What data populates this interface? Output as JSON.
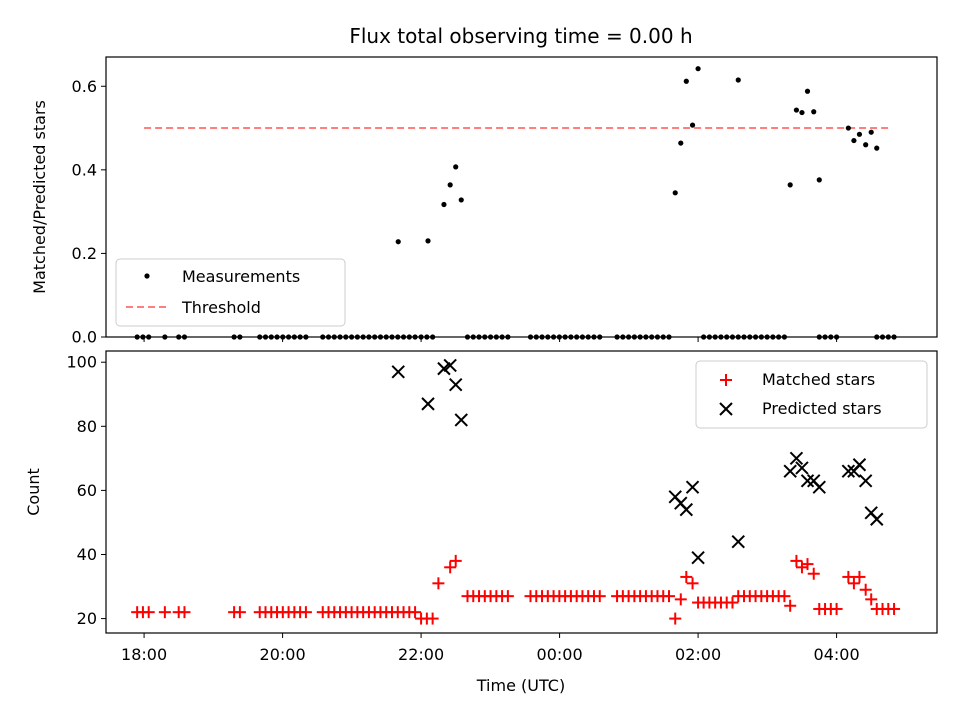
{
  "chart_data": {
    "title": "Flux total observing time = 0.00 h",
    "xlabel": "Time (UTC)",
    "x_ticks": [
      "18:00",
      "20:00",
      "22:00",
      "00:00",
      "02:00",
      "04:00"
    ],
    "x_tick_hours": [
      0,
      2,
      4,
      6,
      8,
      10
    ],
    "x_range_hours": [
      -0.55,
      11.45
    ],
    "top_panel": {
      "type": "scatter",
      "ylabel": "Matched/Predicted stars",
      "ylim": [
        0,
        0.67
      ],
      "y_ticks": [
        0.0,
        0.2,
        0.4,
        0.6
      ],
      "y_tick_labels": [
        "0.0",
        "0.2",
        "0.4",
        "0.6"
      ],
      "threshold": {
        "value": 0.5,
        "x_start": 0,
        "x_end": 10.8,
        "color": "#ff7f7f"
      },
      "legend": {
        "placement": "lower-left",
        "entries": [
          "Measurements",
          "Threshold"
        ]
      },
      "series": [
        {
          "name": "Measurements",
          "color": "#000000",
          "points": [
            [
              3.67,
              0.228
            ],
            [
              4.1,
              0.23
            ],
            [
              4.33,
              0.317
            ],
            [
              4.42,
              0.364
            ],
            [
              4.5,
              0.407
            ],
            [
              4.58,
              0.328
            ],
            [
              7.67,
              0.345
            ],
            [
              7.75,
              0.464
            ],
            [
              7.83,
              0.612
            ],
            [
              7.92,
              0.507
            ],
            [
              8.0,
              0.642
            ],
            [
              8.58,
              0.615
            ],
            [
              9.33,
              0.364
            ],
            [
              9.42,
              0.543
            ],
            [
              9.5,
              0.537
            ],
            [
              9.58,
              0.588
            ],
            [
              9.67,
              0.539
            ],
            [
              9.75,
              0.376
            ],
            [
              10.17,
              0.5
            ],
            [
              10.25,
              0.47
            ],
            [
              10.33,
              0.485
            ],
            [
              10.42,
              0.46
            ],
            [
              10.5,
              0.49
            ],
            [
              10.58,
              0.452
            ]
          ]
        }
      ]
    },
    "bottom_panel": {
      "type": "scatter",
      "ylabel": "Count",
      "ylim": [
        15.5,
        103.5
      ],
      "y_ticks": [
        20,
        40,
        60,
        80,
        100
      ],
      "y_tick_labels": [
        "20",
        "40",
        "60",
        "80",
        "100"
      ],
      "legend": {
        "placement": "top-right",
        "entries": [
          "Matched stars",
          "Predicted stars"
        ]
      },
      "series": [
        {
          "name": "Matched stars",
          "marker": "plus",
          "color": "#ff0000",
          "points": [
            [
              4.25,
              31
            ],
            [
              4.42,
              36
            ],
            [
              4.5,
              38
            ],
            [
              7.67,
              20
            ],
            [
              7.75,
              26
            ],
            [
              7.83,
              33
            ],
            [
              7.92,
              31
            ],
            [
              8.0,
              25
            ],
            [
              9.33,
              24
            ],
            [
              9.42,
              38
            ],
            [
              9.5,
              36
            ],
            [
              9.58,
              37
            ],
            [
              9.67,
              34
            ],
            [
              10.17,
              33
            ],
            [
              10.25,
              31
            ],
            [
              10.33,
              33
            ],
            [
              10.42,
              29
            ],
            [
              10.5,
              26
            ]
          ],
          "runs": [
            {
              "from": -0.1,
              "to": 0.1,
              "step": 0.08333,
              "value": 22
            },
            {
              "from": 0.3,
              "to": 0.3,
              "step": 0.08333,
              "value": 22
            },
            {
              "from": 0.5,
              "to": 0.6,
              "step": 0.08333,
              "value": 22
            },
            {
              "from": 1.3,
              "to": 1.4,
              "step": 0.08333,
              "value": 22
            },
            {
              "from": 1.67,
              "to": 2.4,
              "step": 0.08333,
              "value": 22
            },
            {
              "from": 2.58,
              "to": 3.92,
              "step": 0.08333,
              "value": 22
            },
            {
              "from": 4.0,
              "to": 4.17,
              "step": 0.08333,
              "value": 20
            },
            {
              "from": 4.67,
              "to": 5.33,
              "step": 0.08333,
              "value": 27
            },
            {
              "from": 5.58,
              "to": 6.58,
              "step": 0.08333,
              "value": 27
            },
            {
              "from": 6.83,
              "to": 7.58,
              "step": 0.08333,
              "value": 27
            },
            {
              "from": 8.08,
              "to": 8.5,
              "step": 0.08333,
              "value": 25
            },
            {
              "from": 8.58,
              "to": 9.25,
              "step": 0.08333,
              "value": 27
            },
            {
              "from": 9.75,
              "to": 10.08,
              "step": 0.08333,
              "value": 23
            },
            {
              "from": 10.58,
              "to": 10.83,
              "step": 0.08333,
              "value": 23
            }
          ]
        },
        {
          "name": "Predicted stars",
          "marker": "x",
          "color": "#000000",
          "points": [
            [
              3.67,
              97
            ],
            [
              4.1,
              87
            ],
            [
              4.33,
              98
            ],
            [
              4.42,
              99
            ],
            [
              4.5,
              93
            ],
            [
              4.58,
              82
            ],
            [
              7.67,
              58
            ],
            [
              7.75,
              56
            ],
            [
              7.83,
              54
            ],
            [
              7.92,
              61
            ],
            [
              8.0,
              39
            ],
            [
              8.58,
              44
            ],
            [
              9.33,
              66
            ],
            [
              9.42,
              70
            ],
            [
              9.5,
              67
            ],
            [
              9.58,
              63
            ],
            [
              9.67,
              63
            ],
            [
              9.75,
              61
            ],
            [
              10.17,
              66
            ],
            [
              10.25,
              66
            ],
            [
              10.33,
              68
            ],
            [
              10.42,
              63
            ],
            [
              10.5,
              53
            ],
            [
              10.58,
              51
            ]
          ]
        }
      ]
    }
  }
}
